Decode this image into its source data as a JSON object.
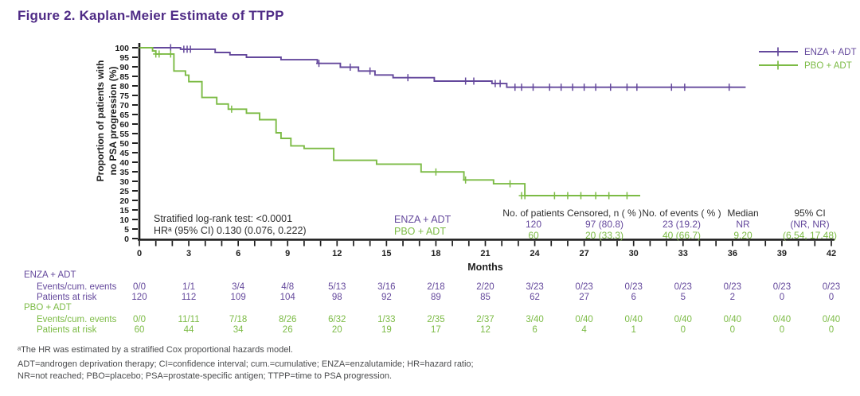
{
  "header": {
    "title": "Figure 2. Kaplan-Meier Estimate of TTPP"
  },
  "colors": {
    "title": "#4f2b86",
    "enza": "#64489c",
    "pbo": "#7cbb45",
    "axis": "#1f1f1f",
    "text": "#2e2e2e",
    "footnote": "#4a4b4d"
  },
  "chart_data": {
    "type": "line",
    "variant": "kaplan_meier_step",
    "xlabel": "Months",
    "ylabel_line1": "Proportion of patients with",
    "ylabel_line2": "no PSA progression (%)",
    "xlim": [
      0,
      42
    ],
    "x_major_tick_step": 3,
    "x_minor_tick_step": 1,
    "ylim": [
      0,
      100
    ],
    "y_tick_step": 5,
    "grid": false,
    "legend_position": "top-right",
    "series": [
      {
        "name": "ENZA + ADT",
        "color_key": "enza",
        "steps": [
          [
            0,
            100
          ],
          [
            2.5,
            99.2
          ],
          [
            4.6,
            97.5
          ],
          [
            5.5,
            96.3
          ],
          [
            6.5,
            95.0
          ],
          [
            8.6,
            93.7
          ],
          [
            10.8,
            91.8
          ],
          [
            12.2,
            89.8
          ],
          [
            13.3,
            87.8
          ],
          [
            14.3,
            85.7
          ],
          [
            15.4,
            84.3
          ],
          [
            17.9,
            82.5
          ],
          [
            21.4,
            81.2
          ],
          [
            22.3,
            79.3
          ],
          [
            36.8,
            79.3
          ]
        ],
        "censors": [
          [
            1.9,
            100
          ],
          [
            2.7,
            99.2
          ],
          [
            2.9,
            99.2
          ],
          [
            3.1,
            99.2
          ],
          [
            10.9,
            91.8
          ],
          [
            12.8,
            89.8
          ],
          [
            14.0,
            87.8
          ],
          [
            16.3,
            84.3
          ],
          [
            19.8,
            82.5
          ],
          [
            20.3,
            82.5
          ],
          [
            21.6,
            81.2
          ],
          [
            21.9,
            81.2
          ],
          [
            22.8,
            79.3
          ],
          [
            23.2,
            79.3
          ],
          [
            23.9,
            79.3
          ],
          [
            24.9,
            79.3
          ],
          [
            25.6,
            79.3
          ],
          [
            26.3,
            79.3
          ],
          [
            27.0,
            79.3
          ],
          [
            27.7,
            79.3
          ],
          [
            28.6,
            79.3
          ],
          [
            29.6,
            79.3
          ],
          [
            30.2,
            79.3
          ],
          [
            32.3,
            79.3
          ],
          [
            33.1,
            79.3
          ],
          [
            35.8,
            79.3
          ]
        ]
      },
      {
        "name": "PBO + ADT",
        "color_key": "pbo",
        "steps": [
          [
            0,
            100
          ],
          [
            0.8,
            98.3
          ],
          [
            1.0,
            96.7
          ],
          [
            2.1,
            87.8
          ],
          [
            2.8,
            85.6
          ],
          [
            3.0,
            82.2
          ],
          [
            3.8,
            73.9
          ],
          [
            4.7,
            70.5
          ],
          [
            5.4,
            67.8
          ],
          [
            6.5,
            65.7
          ],
          [
            7.3,
            62.3
          ],
          [
            8.3,
            55.4
          ],
          [
            8.6,
            52.5
          ],
          [
            9.2,
            48.6
          ],
          [
            10.0,
            47.2
          ],
          [
            11.8,
            41.0
          ],
          [
            14.4,
            39.0
          ],
          [
            17.1,
            34.9
          ],
          [
            19.7,
            30.7
          ],
          [
            21.5,
            28.7
          ],
          [
            23.4,
            22.5
          ],
          [
            30.4,
            22.5
          ]
        ],
        "censors": [
          [
            1.0,
            96.7
          ],
          [
            1.2,
            96.7
          ],
          [
            1.9,
            96.7
          ],
          [
            5.6,
            67.8
          ],
          [
            18.0,
            34.9
          ],
          [
            19.8,
            30.7
          ],
          [
            22.5,
            28.7
          ],
          [
            23.2,
            22.5
          ],
          [
            23.4,
            22.5
          ],
          [
            25.2,
            22.5
          ],
          [
            26.0,
            22.5
          ],
          [
            26.8,
            22.5
          ],
          [
            27.7,
            22.5
          ],
          [
            28.5,
            22.5
          ],
          [
            29.6,
            22.5
          ]
        ]
      }
    ]
  },
  "annotations": {
    "logrank": "Stratified log-rank test: <0.0001",
    "hr": "HRᵃ (95% CI) 0.130 (0.076, 0.222)",
    "series_label_enza": "ENZA + ADT",
    "series_label_pbo": "PBO + ADT"
  },
  "summary_table": {
    "headers": [
      "No. of patients",
      "Censored, n ( % )",
      "No. of events ( % )",
      "Median",
      "95% CI"
    ],
    "rows": [
      {
        "series": "ENZA + ADT",
        "color_key": "enza",
        "values": [
          "120",
          "97 (80.8)",
          "23 (19.2)",
          "NR",
          "(NR, NR)"
        ]
      },
      {
        "series": "PBO + ADT",
        "color_key": "pbo",
        "values": [
          "60",
          "20 (33.3)",
          "40 (66.7)",
          "9.20",
          "(6.54, 17.48)"
        ]
      }
    ]
  },
  "risk_table": {
    "months": [
      0,
      3,
      6,
      9,
      12,
      15,
      18,
      21,
      24,
      27,
      30,
      33,
      36,
      39,
      42
    ],
    "groups": [
      {
        "name": "ENZA + ADT",
        "color_key": "enza",
        "rows": [
          {
            "label": "Events/cum. events",
            "values": [
              "0/0",
              "1/1",
              "3/4",
              "4/8",
              "5/13",
              "3/16",
              "2/18",
              "2/20",
              "3/23",
              "0/23",
              "0/23",
              "0/23",
              "0/23",
              "0/23",
              "0/23"
            ]
          },
          {
            "label": "Patients at risk",
            "values": [
              "120",
              "112",
              "109",
              "104",
              "98",
              "92",
              "89",
              "85",
              "62",
              "27",
              "6",
              "5",
              "2",
              "0",
              "0"
            ]
          }
        ]
      },
      {
        "name": "PBO + ADT",
        "color_key": "pbo",
        "rows": [
          {
            "label": "Events/cum. events",
            "values": [
              "0/0",
              "11/11",
              "7/18",
              "8/26",
              "6/32",
              "1/33",
              "2/35",
              "2/37",
              "3/40",
              "0/40",
              "0/40",
              "0/40",
              "0/40",
              "0/40",
              "0/40"
            ]
          },
          {
            "label": "Patients at risk",
            "values": [
              "60",
              "44",
              "34",
              "26",
              "20",
              "19",
              "17",
              "12",
              "6",
              "4",
              "1",
              "0",
              "0",
              "0",
              "0"
            ]
          }
        ]
      }
    ]
  },
  "footnotes": [
    "ᵃThe HR was estimated by a stratified Cox proportional hazards model.",
    "ADT=androgen deprivation therapy; CI=confidence interval; cum.=cumulative; ENZA=enzalutamide; HR=hazard ratio;",
    "NR=not reached; PBO=placebo; PSA=prostate-specific antigen; TTPP=time to PSA progression."
  ]
}
